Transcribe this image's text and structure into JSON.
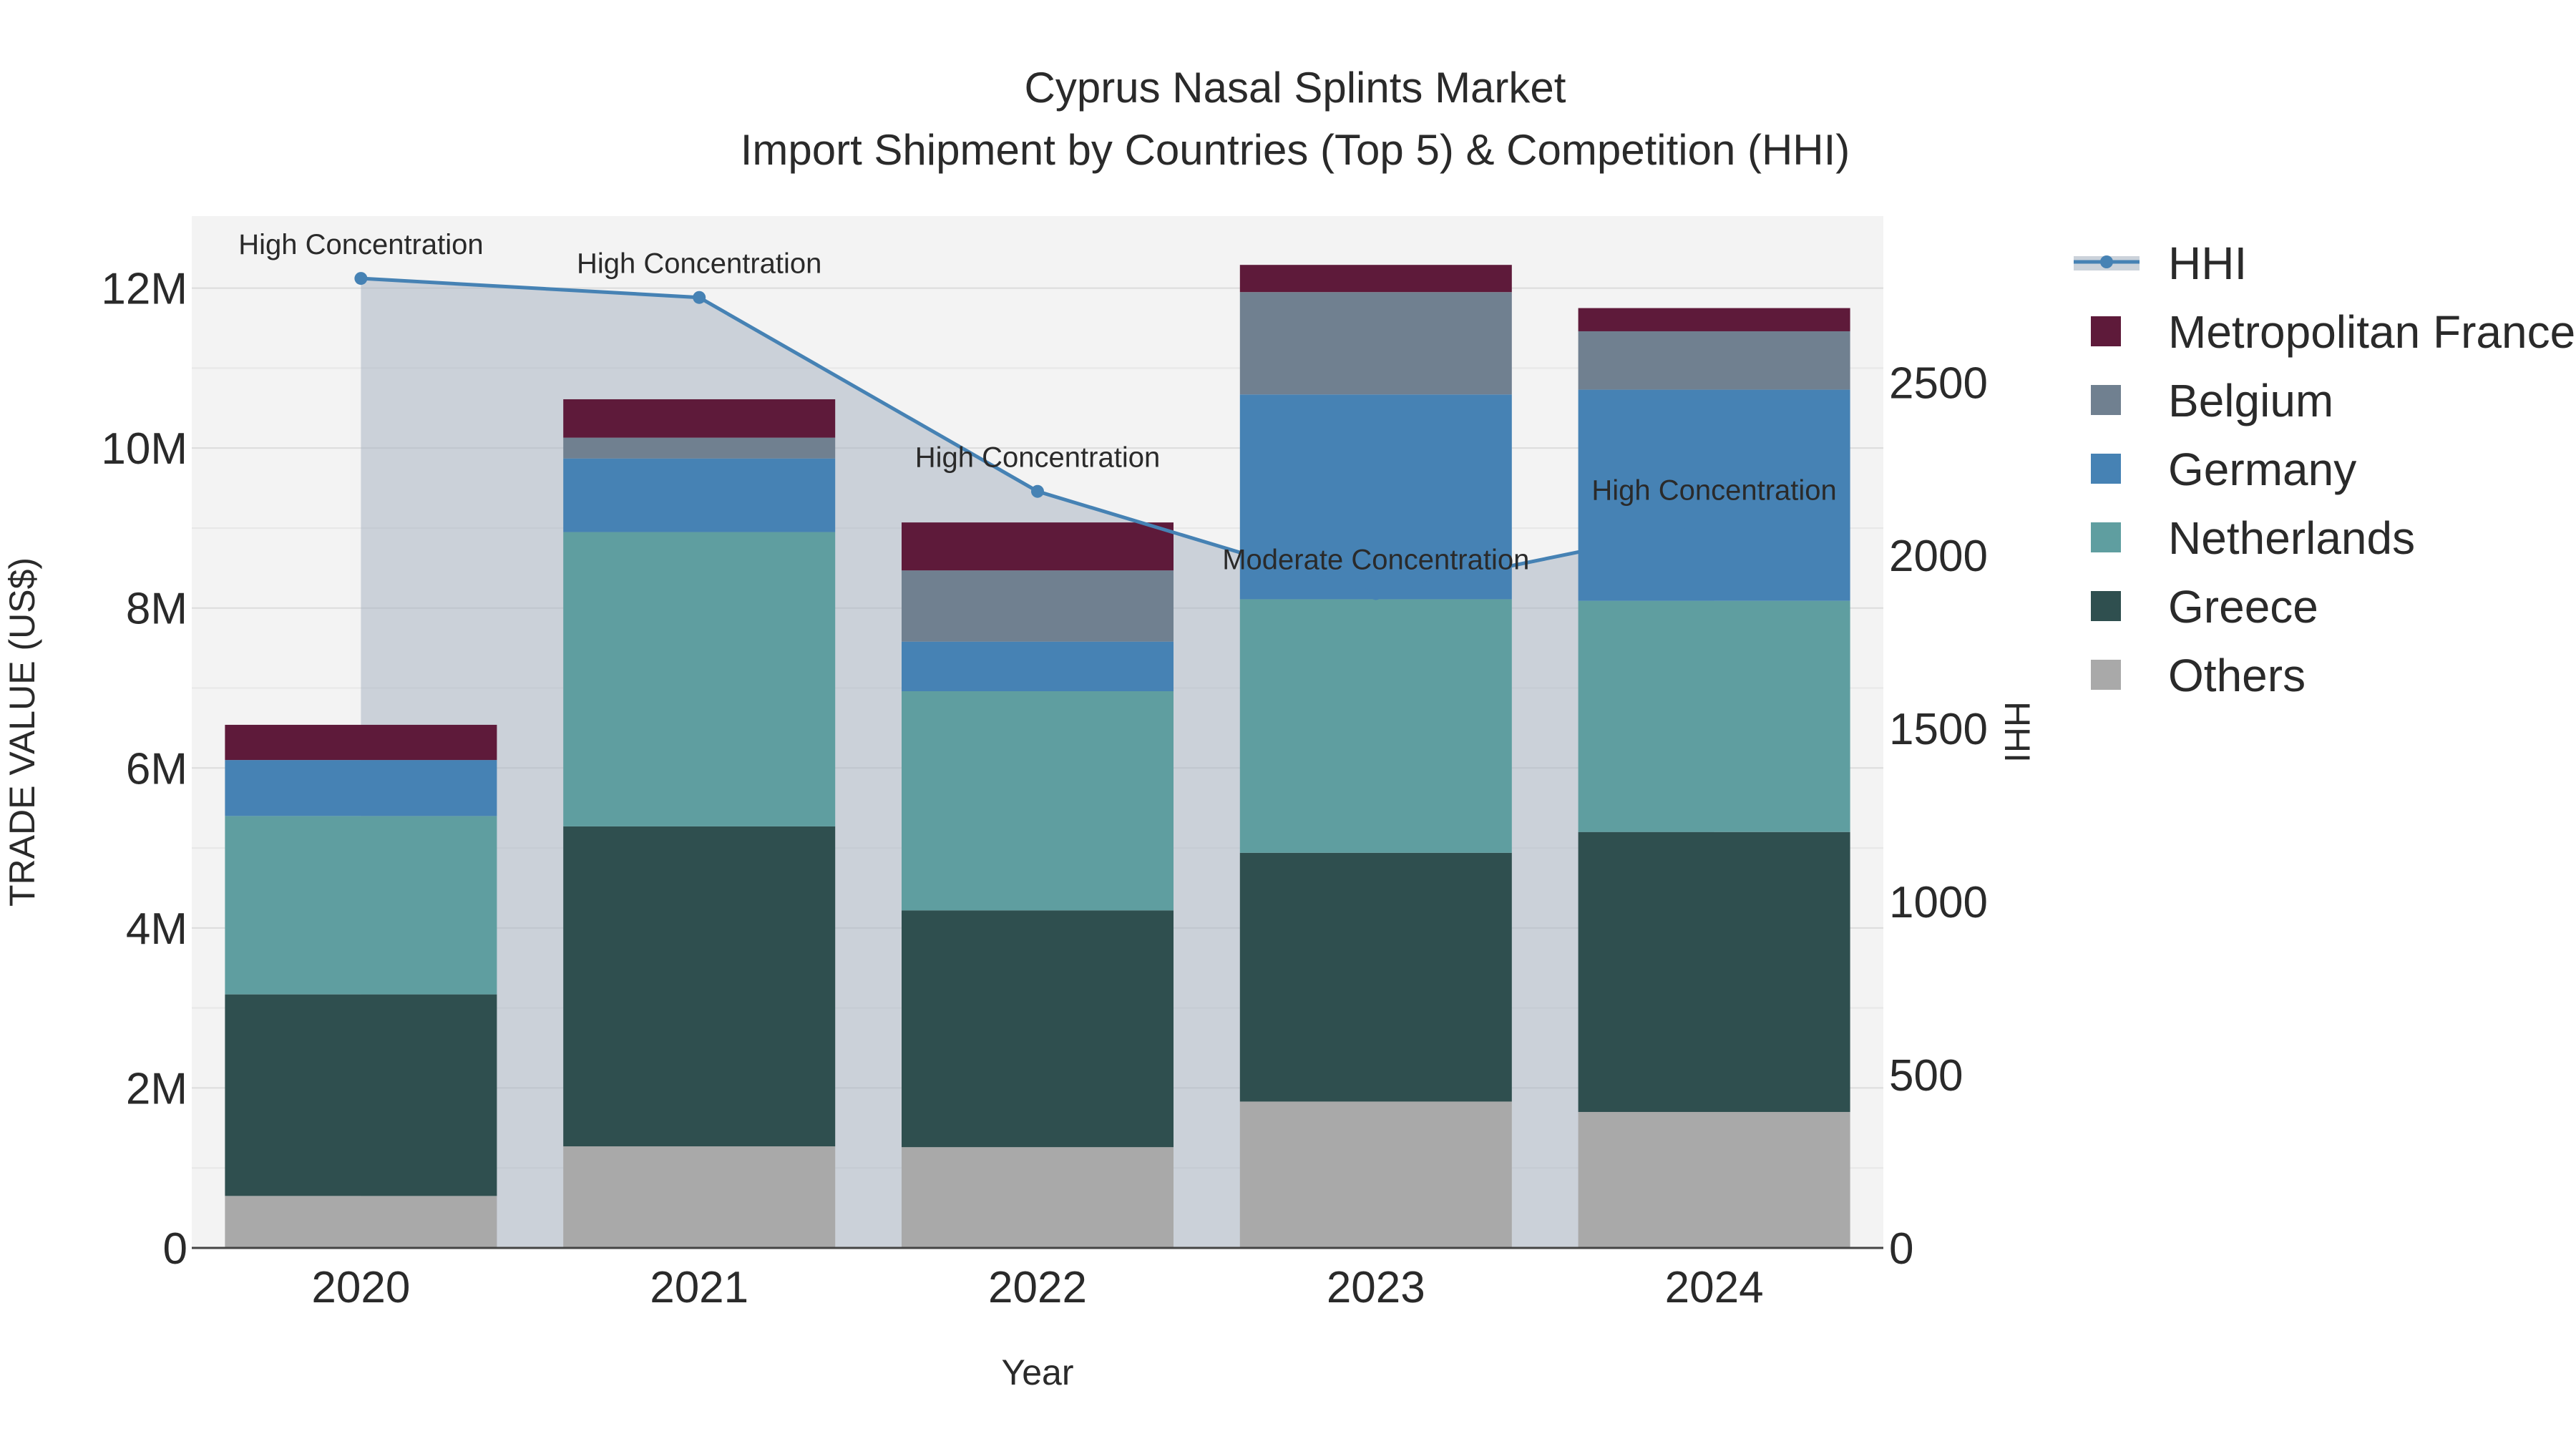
{
  "chart_data": {
    "type": "bar",
    "title": "Cyprus Nasal Splints Market",
    "subtitle": "Import Shipment by Countries (Top 5) & Competition (HHI)",
    "xlabel": "Year",
    "ylabel": "TRADE VALUE (US$)",
    "y2label": "HHI",
    "categories": [
      "2020",
      "2021",
      "2022",
      "2023",
      "2024"
    ],
    "ylim": [
      0,
      12900000
    ],
    "y2lim": [
      0,
      2980
    ],
    "yticks": [
      0,
      2000000,
      4000000,
      6000000,
      8000000,
      10000000,
      12000000
    ],
    "ytick_labels": [
      "0",
      "2M",
      "4M",
      "6M",
      "8M",
      "10M",
      "12M"
    ],
    "y2ticks": [
      0,
      500,
      1000,
      1500,
      2000,
      2500
    ],
    "y2tick_labels": [
      "0",
      "500",
      "1000",
      "1500",
      "2000",
      "2500"
    ],
    "stacked": true,
    "series": [
      {
        "name": "Others",
        "color": "#a9a9a9",
        "values": [
          650000,
          1270000,
          1260000,
          1830000,
          1700000
        ]
      },
      {
        "name": "Greece",
        "color": "#2f4f4f",
        "values": [
          2520000,
          4000000,
          2960000,
          3110000,
          3500000
        ]
      },
      {
        "name": "Netherlands",
        "color": "#5f9ea0",
        "values": [
          2230000,
          3680000,
          2740000,
          3170000,
          2890000
        ]
      },
      {
        "name": "Germany",
        "color": "#4682b4",
        "values": [
          700000,
          920000,
          620000,
          2560000,
          2640000
        ]
      },
      {
        "name": "Belgium",
        "color": "#708090",
        "values": [
          0,
          260000,
          890000,
          1280000,
          730000
        ]
      },
      {
        "name": "Metropolitan France",
        "color": "#5e1a3a",
        "values": [
          440000,
          480000,
          600000,
          340000,
          290000
        ]
      }
    ],
    "line": {
      "name": "HHI",
      "color": "#4682b4",
      "values": [
        2800,
        2745,
        2185,
        1890,
        2090
      ],
      "annotations": [
        "High Concentration",
        "High Concentration",
        "High Concentration",
        "Moderate Concentration",
        "High Concentration"
      ]
    },
    "legend_order": [
      "HHI",
      "Metropolitan France",
      "Belgium",
      "Germany",
      "Netherlands",
      "Greece",
      "Others"
    ],
    "legend_position": "right",
    "grid": true
  }
}
